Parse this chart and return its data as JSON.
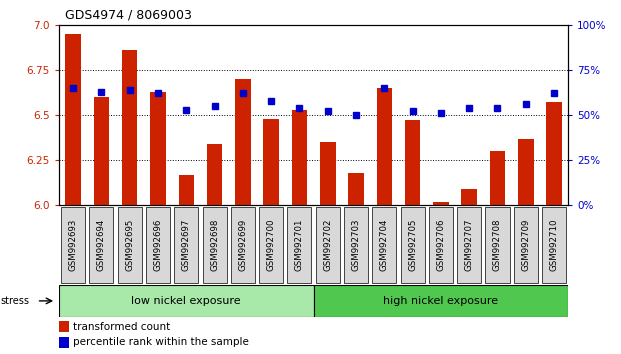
{
  "title": "GDS4974 / 8069003",
  "samples": [
    "GSM992693",
    "GSM992694",
    "GSM992695",
    "GSM992696",
    "GSM992697",
    "GSM992698",
    "GSM992699",
    "GSM992700",
    "GSM992701",
    "GSM992702",
    "GSM992703",
    "GSM992704",
    "GSM992705",
    "GSM992706",
    "GSM992707",
    "GSM992708",
    "GSM992709",
    "GSM992710"
  ],
  "bar_values": [
    6.95,
    6.6,
    6.86,
    6.63,
    6.17,
    6.34,
    6.7,
    6.48,
    6.53,
    6.35,
    6.18,
    6.65,
    6.47,
    6.02,
    6.09,
    6.3,
    6.37,
    6.57
  ],
  "blue_values": [
    65,
    63,
    64,
    62,
    53,
    55,
    62,
    58,
    54,
    52,
    50,
    65,
    52,
    51,
    54,
    54,
    56,
    62
  ],
  "bar_color": "#cc2200",
  "blue_color": "#0000cc",
  "ylim_left": [
    6.0,
    7.0
  ],
  "yticks_left": [
    6.0,
    6.25,
    6.5,
    6.75,
    7.0
  ],
  "yticks_right": [
    0,
    25,
    50,
    75,
    100
  ],
  "group1_label": "low nickel exposure",
  "group2_label": "high nickel exposure",
  "group1_count": 9,
  "group2_count": 9,
  "stress_label": "stress",
  "legend1": "transformed count",
  "legend2": "percentile rank within the sample",
  "group1_color": "#a8e8a8",
  "group2_color": "#50c850",
  "bar_bottom": 6.0,
  "xlabel_color": "#cc2200",
  "right_axis_color": "#0000cc"
}
